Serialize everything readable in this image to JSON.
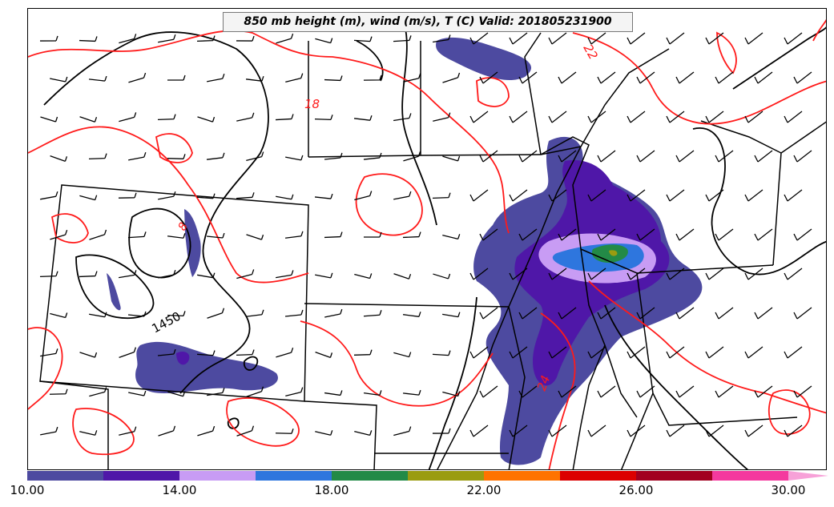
{
  "title": "850 mb height (m), wind (m/s), T (C) Valid: 201805231900",
  "contour_labels": {
    "height_1450": "1450",
    "temp_18": "18",
    "temp_22": "22",
    "temp_24": "24",
    "temp_8": "8"
  },
  "colorbar": {
    "min": 10,
    "max": 30,
    "step": 2,
    "tick_labels": [
      "10.00",
      "14.00",
      "18.00",
      "22.00",
      "26.00",
      "30.00"
    ],
    "colors": [
      "#4d4aa0",
      "#4f17a8",
      "#c89cf4",
      "#2e76de",
      "#238a47",
      "#9a9c11",
      "#ff7300",
      "#dc0000",
      "#a2001f",
      "#f4399e"
    ],
    "extend_color": "#f7a1d8"
  },
  "layers": {
    "shading_field": "wind speed (m/s)",
    "height_contour_color": "#000000",
    "temperature_contour_color": "#ff1a1a",
    "borders_color": "#000000"
  }
}
